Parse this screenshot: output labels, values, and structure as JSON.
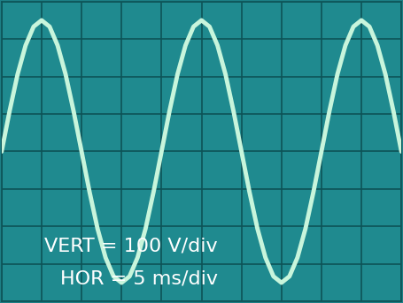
{
  "chart_data": {
    "type": "line",
    "x": [
      0,
      1,
      2,
      3,
      4,
      5,
      6,
      7,
      8,
      9,
      10,
      11,
      12,
      13,
      14,
      15,
      16,
      17,
      18,
      19,
      20,
      21,
      22,
      23,
      24,
      25,
      26,
      27,
      28,
      29,
      30,
      31,
      32,
      33,
      34,
      35,
      36,
      37,
      38,
      39,
      40,
      41,
      42,
      43,
      44,
      45,
      46,
      47,
      48,
      49,
      50
    ],
    "values": [
      0,
      108,
      206,
      283,
      333,
      350,
      333,
      283,
      206,
      108,
      0,
      -108,
      -206,
      -283,
      -333,
      -350,
      -333,
      -283,
      -206,
      -108,
      0,
      108,
      206,
      283,
      333,
      350,
      333,
      283,
      206,
      108,
      0,
      -108,
      -206,
      -283,
      -333,
      -350,
      -333,
      -283,
      -206,
      -108,
      0,
      108,
      206,
      283,
      333,
      350,
      333,
      283,
      206,
      108,
      0
    ],
    "color": "#c8f5dc",
    "xlim": [
      0,
      50
    ],
    "xticks": [
      0,
      5,
      10,
      15,
      20,
      25,
      30,
      35,
      40,
      45,
      50
    ],
    "ylim": [
      -400,
      400
    ],
    "yticks": [
      -400,
      -300,
      -200,
      -100,
      0,
      100,
      200,
      300,
      400
    ],
    "grid": true,
    "tick_labels": false,
    "annotations": [
      "VERT = 100 V/div",
      "HOR = 5 ms/div"
    ]
  }
}
